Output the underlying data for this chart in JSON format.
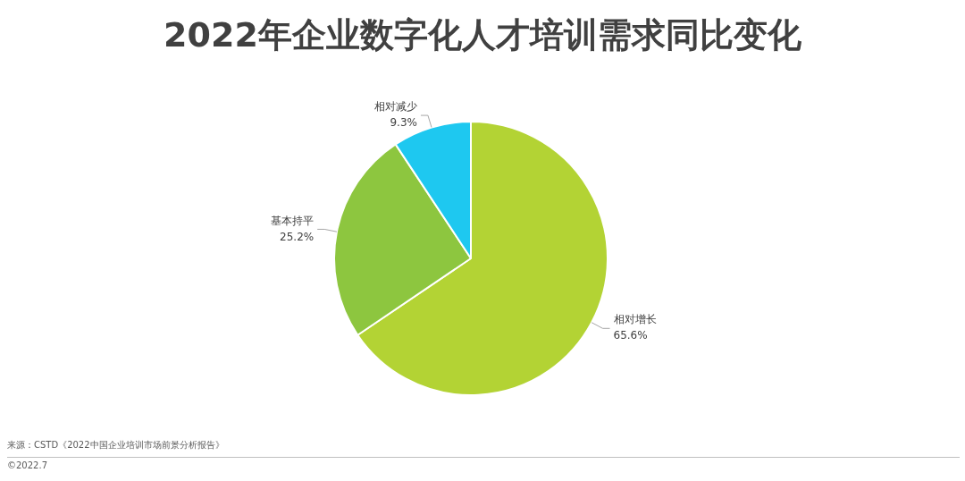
{
  "chart_data": {
    "type": "pie",
    "title": "2022年企业数字化人才培训需求同比变化",
    "categories": [
      "相对增长",
      "基本持平",
      "相对减少"
    ],
    "values": [
      65.6,
      25.2,
      9.3
    ],
    "value_labels": [
      "65.6%",
      "25.2%",
      "9.3%"
    ],
    "colors": [
      "#b3d334",
      "#8dc63f",
      "#1ec8f0"
    ],
    "annotations": [
      "来源：CSTD《2022中国企业培训市场前景分析报告》",
      "©2022.7"
    ]
  }
}
